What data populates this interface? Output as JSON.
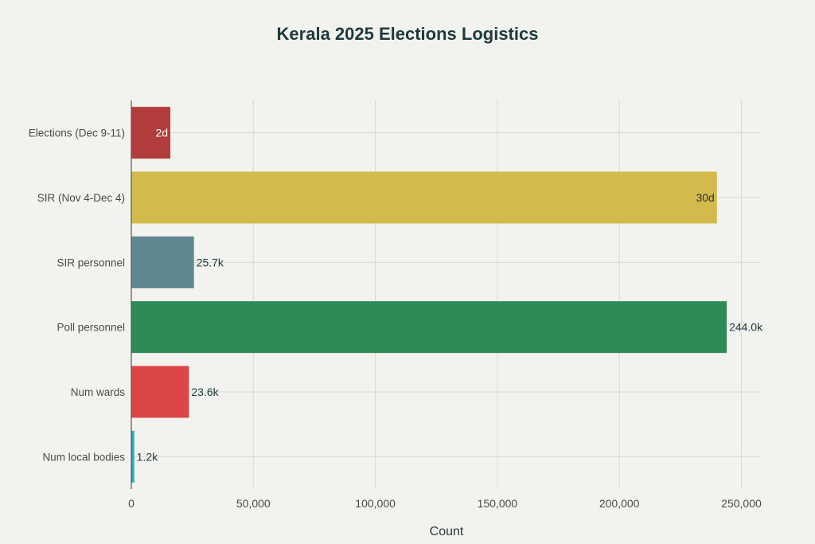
{
  "chart_data": {
    "type": "bar",
    "orientation": "horizontal",
    "title": "Kerala 2025 Elections Logistics",
    "xlabel": "Count",
    "ylabel": "",
    "xlim": [
      0,
      258000
    ],
    "xticks": [
      0,
      50000,
      100000,
      150000,
      200000,
      250000
    ],
    "xtick_labels": [
      "0",
      "50,000",
      "100,000",
      "150,000",
      "200,000",
      "250,000"
    ],
    "grid": true,
    "categories": [
      "Elections (Dec 9-11)",
      "SIR (Nov 4-Dec 4)",
      "SIR personnel",
      "Poll personnel",
      "Num wards",
      "Num local bodies"
    ],
    "values": [
      16000,
      240000,
      25668,
      244000,
      23612,
      1200
    ],
    "data_labels": [
      "2d",
      "30d",
      "25.7k",
      "244.0k",
      "23.6k",
      "1.2k"
    ],
    "label_inside": [
      true,
      true,
      false,
      false,
      false,
      false
    ],
    "colors": [
      "#b33c3c",
      "#d2ba4c",
      "#5e8790",
      "#2e8a57",
      "#dc4646",
      "#2aabbf"
    ],
    "label_colors": [
      "#ffffff",
      "#333333",
      "#1f3a3d",
      "#1f3a3d",
      "#1f3a3d",
      "#1f3a3d"
    ]
  }
}
